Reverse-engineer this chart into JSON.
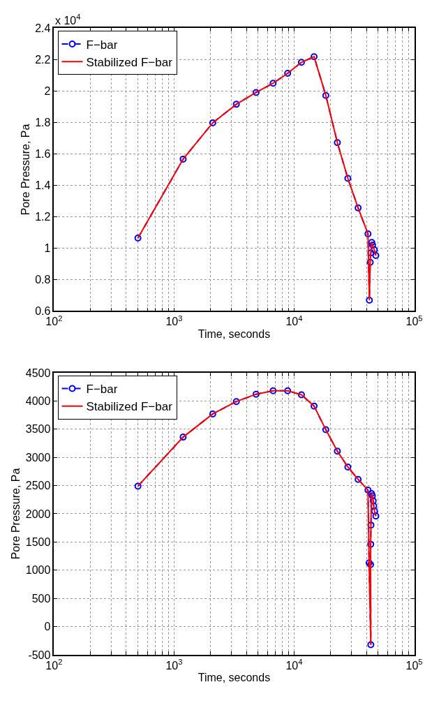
{
  "chart_data": [
    {
      "type": "line",
      "xlabel": "Time, seconds",
      "ylabel": "Pore Pressure, Pa",
      "log": "x",
      "grid": true,
      "legend": "top left",
      "annotations": [
        "x 10$^{4}$"
      ],
      "x": [
        500,
        1190,
        2100,
        3300,
        4820,
        6680,
        8830,
        11500,
        14650,
        18360,
        22900,
        28000,
        34100,
        41200,
        42300,
        43000,
        43500,
        44300,
        45000,
        46500,
        47900
      ],
      "series": [
        {
          "name": "F−bar",
          "color": "#0000ff",
          "marker": "circle",
          "line_style": "dashed",
          "values": [
            1.064,
            1.567,
            1.798,
            1.916,
            1.991,
            2.05,
            2.113,
            2.183,
            2.219,
            1.972,
            1.672,
            1.444,
            1.256,
            1.091,
            0.669,
            0.91,
            0.97,
            1.036,
            1.02,
            0.99,
            0.953
          ]
        },
        {
          "name": "Stabilized F−bar",
          "color": "#ff0000",
          "marker": "none",
          "line_style": "solid",
          "values": [
            1.064,
            1.567,
            1.798,
            1.916,
            1.991,
            2.05,
            2.113,
            2.183,
            2.219,
            1.972,
            1.672,
            1.444,
            1.256,
            1.091,
            0.669,
            0.91,
            0.97,
            1.036,
            1.02,
            0.99,
            0.953
          ]
        }
      ],
      "xlim": [
        100,
        100000
      ],
      "xticks": [
        {
          "value": 100,
          "label": "10$^{2}$"
        },
        {
          "value": 200,
          "label": null
        },
        {
          "value": 300,
          "label": null
        },
        {
          "value": 400,
          "label": null
        },
        {
          "value": 500,
          "label": null
        },
        {
          "value": 600,
          "label": null
        },
        {
          "value": 700,
          "label": null
        },
        {
          "value": 800,
          "label": null
        },
        {
          "value": 900,
          "label": null
        },
        {
          "value": 1000,
          "label": "10$^{3}$"
        },
        {
          "value": 2000,
          "label": null
        },
        {
          "value": 3000,
          "label": null
        },
        {
          "value": 4000,
          "label": null
        },
        {
          "value": 5000,
          "label": null
        },
        {
          "value": 6000,
          "label": null
        },
        {
          "value": 7000,
          "label": null
        },
        {
          "value": 8000,
          "label": null
        },
        {
          "value": 9000,
          "label": null
        },
        {
          "value": 10000,
          "label": "10$^{4}$"
        },
        {
          "value": 20000,
          "label": null
        },
        {
          "value": 30000,
          "label": null
        },
        {
          "value": 40000,
          "label": null
        },
        {
          "value": 50000,
          "label": null
        },
        {
          "value": 60000,
          "label": null
        },
        {
          "value": 70000,
          "label": null
        },
        {
          "value": 80000,
          "label": null
        },
        {
          "value": 90000,
          "label": null
        },
        {
          "value": 100000,
          "label": "10$^{5}$"
        }
      ],
      "ylim": [
        0.6,
        2.4
      ],
      "yticks": [
        0.6,
        0.8,
        1,
        1.2,
        1.4,
        1.6,
        1.8,
        2,
        2.2,
        2.4
      ]
    },
    {
      "type": "line",
      "xlabel": "Time, seconds",
      "ylabel": "Pore Pressure, Pa",
      "log": "x",
      "grid": true,
      "legend": "top left",
      "x": [
        500,
        1190,
        2100,
        3300,
        4820,
        6680,
        8830,
        11500,
        14650,
        18360,
        22900,
        28000,
        34100,
        41200,
        42100,
        43500,
        43300,
        43400,
        43600,
        44100,
        44800,
        45500,
        46000,
        46700,
        47900
      ],
      "series": [
        {
          "name": "F−bar",
          "color": "#0000ff",
          "marker": "circle",
          "line_style": "dashed",
          "values": [
            2490,
            3360,
            3770,
            3990,
            4120,
            4180,
            4180,
            4110,
            3910,
            3490,
            3110,
            2830,
            2610,
            2420,
            1130,
            -320,
            1100,
            1460,
            1800,
            2360,
            2320,
            2230,
            2140,
            2050,
            1960
          ]
        },
        {
          "name": "Stabilized F−bar",
          "color": "#ff0000",
          "marker": "none",
          "line_style": "solid",
          "values": [
            2490,
            3360,
            3770,
            3990,
            4120,
            4180,
            4180,
            4110,
            3910,
            3490,
            3110,
            2830,
            2610,
            2420,
            1130,
            -320,
            1100,
            1460,
            1800,
            2360,
            2320,
            2230,
            2140,
            2050,
            1960
          ]
        }
      ],
      "xlim": [
        100,
        100000
      ],
      "xticks": [
        {
          "value": 100,
          "label": "10$^{2}$"
        },
        {
          "value": 200,
          "label": null
        },
        {
          "value": 300,
          "label": null
        },
        {
          "value": 400,
          "label": null
        },
        {
          "value": 500,
          "label": null
        },
        {
          "value": 600,
          "label": null
        },
        {
          "value": 700,
          "label": null
        },
        {
          "value": 800,
          "label": null
        },
        {
          "value": 900,
          "label": null
        },
        {
          "value": 1000,
          "label": "10$^{3}$"
        },
        {
          "value": 2000,
          "label": null
        },
        {
          "value": 3000,
          "label": null
        },
        {
          "value": 4000,
          "label": null
        },
        {
          "value": 5000,
          "label": null
        },
        {
          "value": 6000,
          "label": null
        },
        {
          "value": 7000,
          "label": null
        },
        {
          "value": 8000,
          "label": null
        },
        {
          "value": 9000,
          "label": null
        },
        {
          "value": 10000,
          "label": "10$^{4}$"
        },
        {
          "value": 20000,
          "label": null
        },
        {
          "value": 30000,
          "label": null
        },
        {
          "value": 40000,
          "label": null
        },
        {
          "value": 50000,
          "label": null
        },
        {
          "value": 60000,
          "label": null
        },
        {
          "value": 70000,
          "label": null
        },
        {
          "value": 80000,
          "label": null
        },
        {
          "value": 90000,
          "label": null
        },
        {
          "value": 100000,
          "label": "10$^{5}$"
        }
      ],
      "ylim": [
        -500,
        4500
      ],
      "yticks": [
        -500,
        0,
        500,
        1000,
        1500,
        2000,
        2500,
        3000,
        3500,
        4000,
        4500
      ]
    }
  ]
}
